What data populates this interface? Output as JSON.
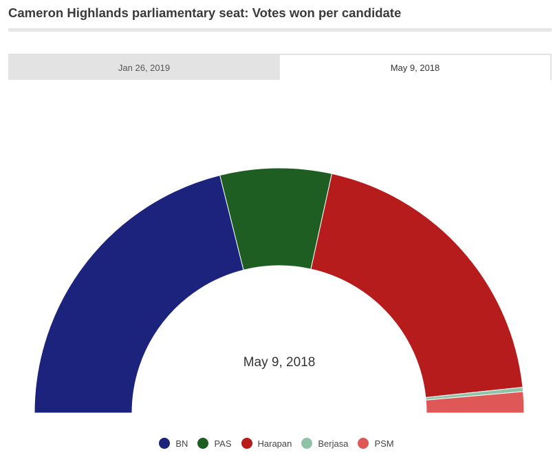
{
  "title": "Cameron Highlands parliamentary seat: Votes won per candidate",
  "tabs": [
    {
      "label": "Jan 26, 2019",
      "active": false
    },
    {
      "label": "May 9, 2018",
      "active": true
    }
  ],
  "chart_data": {
    "type": "pie",
    "subtype": "semi-donut",
    "center_label": "May 9, 2018",
    "categories": [
      "BN",
      "PAS",
      "Harapan",
      "Berjasa",
      "PSM"
    ],
    "values": [
      10307,
      3587,
      9710,
      138,
      680
    ],
    "colors": [
      "#1c237d",
      "#1e5e22",
      "#b71c1c",
      "#90c2a8",
      "#e05757"
    ],
    "legend_position": "bottom-center"
  }
}
